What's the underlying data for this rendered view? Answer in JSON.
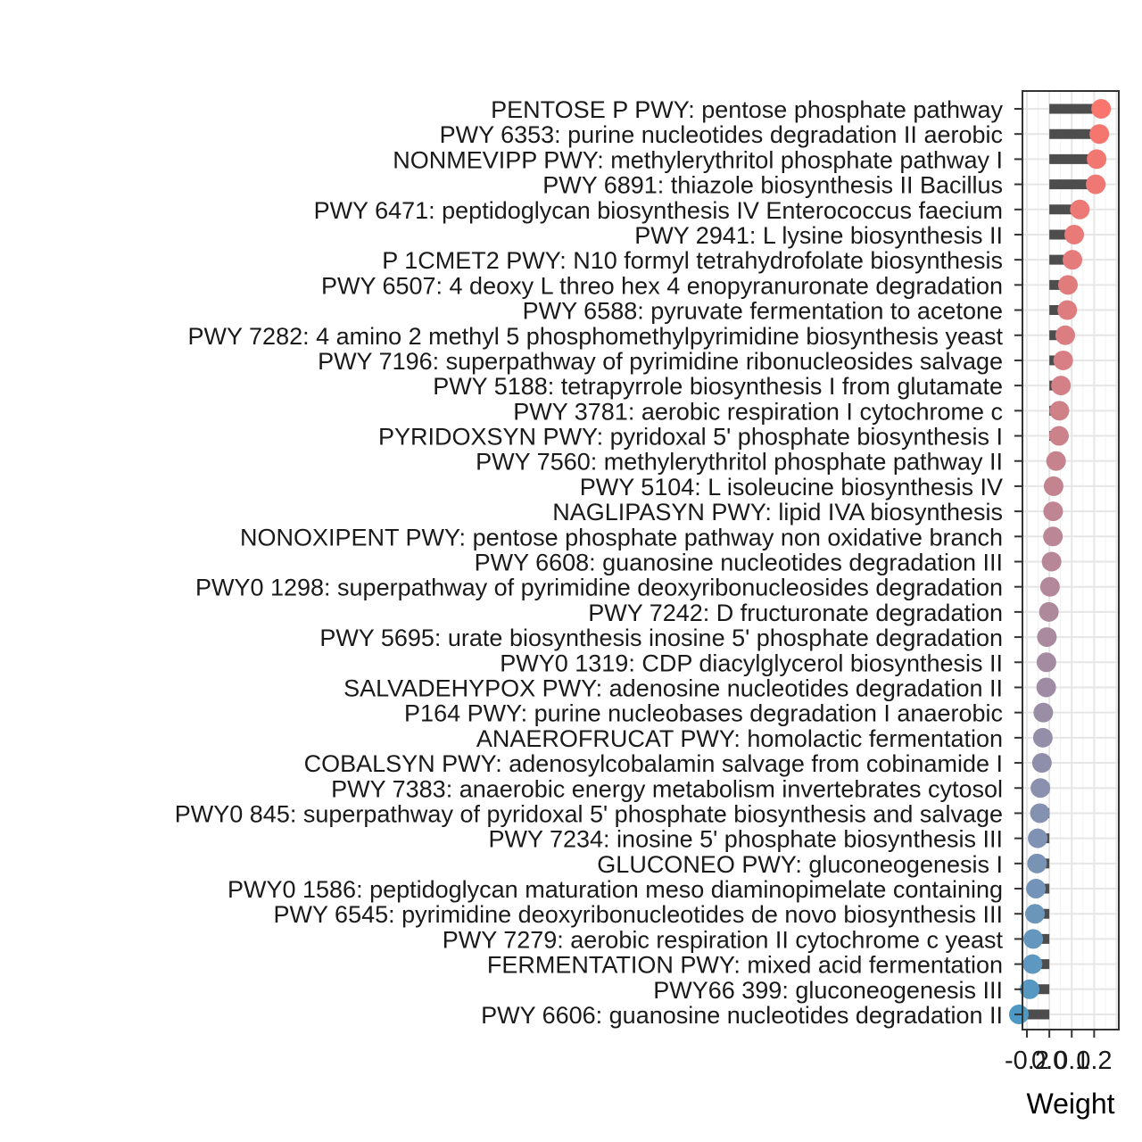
{
  "chart_data": {
    "type": "lollipop",
    "xlabel": "Weight",
    "ylabel": "",
    "xlim": [
      -0.12,
      0.31
    ],
    "x_ticks": [
      -0.2,
      0.0,
      0.1,
      0.2
    ],
    "x_tick_labels": [
      "-0.2",
      "0.0",
      "0.1",
      "0.2"
    ],
    "grid": true,
    "legend": "none",
    "categories": [
      "PENTOSE P PWY: pentose phosphate pathway",
      "PWY 6353: purine nucleotides degradation II aerobic",
      "NONMEVIPP PWY: methylerythritol phosphate pathway I",
      "PWY 6891: thiazole biosynthesis II Bacillus",
      "PWY 6471: peptidoglycan biosynthesis IV Enterococcus faecium",
      "PWY 2941: L lysine biosynthesis II",
      "P 1CMET2 PWY: N10 formyl tetrahydrofolate biosynthesis",
      "PWY 6507: 4 deoxy L threo hex 4 enopyranuronate degradation",
      "PWY 6588: pyruvate fermentation to acetone",
      "PWY 7282: 4 amino 2 methyl 5 phosphomethylpyrimidine biosynthesis yeast",
      "PWY 7196: superpathway of pyrimidine ribonucleosides salvage",
      "PWY 5188: tetrapyrrole biosynthesis I from glutamate",
      "PWY 3781: aerobic respiration I cytochrome c",
      "PYRIDOXSYN PWY: pyridoxal 5' phosphate biosynthesis I",
      "PWY 7560: methylerythritol phosphate pathway II",
      "PWY 5104: L isoleucine biosynthesis IV",
      "NAGLIPASYN PWY: lipid IVA biosynthesis",
      "NONOXIPENT PWY: pentose phosphate pathway non oxidative branch",
      "PWY 6608: guanosine nucleotides degradation III",
      "PWY0 1298: superpathway of pyrimidine deoxyribonucleosides degradation",
      "PWY 7242: D fructuronate degradation",
      "PWY 5695: urate biosynthesis inosine 5' phosphate degradation",
      "PWY0 1319: CDP diacylglycerol biosynthesis II",
      "SALVADEHYPOX PWY: adenosine nucleotides degradation II",
      "P164 PWY: purine nucleobases degradation I anaerobic",
      "ANAEROFRUCAT PWY: homolactic fermentation",
      "COBALSYN PWY: adenosylcobalamin salvage from cobinamide I",
      "PWY 7383: anaerobic energy metabolism invertebrates  cytosol",
      "PWY0 845: superpathway of pyridoxal 5' phosphate biosynthesis and salvage",
      "PWY 7234: inosine 5' phosphate biosynthesis III",
      "GLUCONEO PWY: gluconeogenesis I",
      "PWY0 1586: peptidoglycan maturation meso diaminopimelate containing",
      "PWY 6545: pyrimidine deoxyribonucleotides de novo biosynthesis III",
      "PWY 7279: aerobic respiration II cytochrome c yeast",
      "FERMENTATION PWY: mixed acid fermentation",
      "PWY66 399: gluconeogenesis III",
      "PWY 6606: guanosine nucleotides degradation II"
    ],
    "values": [
      0.231,
      0.223,
      0.211,
      0.207,
      0.136,
      0.111,
      0.103,
      0.083,
      0.08,
      0.071,
      0.062,
      0.052,
      0.045,
      0.043,
      0.03,
      0.019,
      0.017,
      0.016,
      0.01,
      0.003,
      -0.002,
      -0.011,
      -0.013,
      -0.014,
      -0.027,
      -0.029,
      -0.033,
      -0.04,
      -0.042,
      -0.052,
      -0.055,
      -0.06,
      -0.064,
      -0.072,
      -0.075,
      -0.088,
      -0.136
    ],
    "colors": [
      "#F8766D",
      "#F5766F",
      "#F27771",
      "#EF7874",
      "#EC7976",
      "#E87A78",
      "#E57B7A",
      "#E17C7D",
      "#DE7D7F",
      "#DA7E81",
      "#D77F84",
      "#D38086",
      "#CF8188",
      "#CB828B",
      "#C7838D",
      "#C38490",
      "#BF8592",
      "#BB8695",
      "#B78797",
      "#B2889A",
      "#AE899C",
      "#A98A9F",
      "#A48BA1",
      "#9F8CA4",
      "#9A8DA6",
      "#958EA9",
      "#908FAB",
      "#8A90AE",
      "#8591B0",
      "#7F92B3",
      "#7993B5",
      "#7394B8",
      "#6C95BA",
      "#6596BD",
      "#5E97BF",
      "#5698C2",
      "#4D99C4"
    ]
  }
}
